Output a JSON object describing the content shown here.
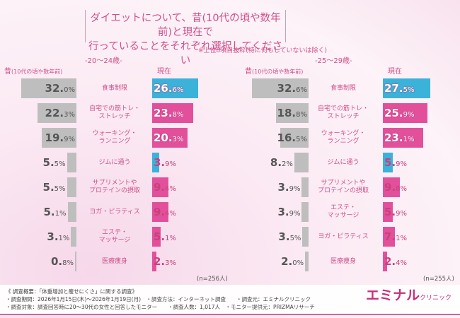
{
  "title": {
    "line1": "ダイエットについて、昔(10代の頃や数年前)と現在で",
    "line2": "行っていることをそれぞれ選択してください"
  },
  "note": "※上位8項目抜粋(特に何もしていないは除く)",
  "colors": {
    "past": "#bebebe",
    "current_pink": "#e2509c",
    "current_blue": "#3bb2d9",
    "accent": "#d0508a"
  },
  "chart_data": [
    {
      "type": "bar",
      "title": "-20～24歳-",
      "past_label": "昔",
      "past_label_sub": "(10代の頃や数年前)",
      "current_label": "現在",
      "n": "(n=256人)",
      "categories": [
        "食事制限",
        "自宅での筋トレ・\nストレッチ",
        "ウォーキング・\nランニング",
        "ジムに通う",
        "サプリメントや\nプロテインの摂取",
        "ヨガ・ピラティス",
        "エステ・\nマッサージ",
        "医療痩身"
      ],
      "series": [
        {
          "name": "昔(10代の頃や数年前)",
          "values": [
            32.0,
            22.3,
            19.9,
            5.5,
            5.5,
            5.1,
            3.1,
            0.8
          ]
        },
        {
          "name": "現在",
          "values": [
            26.6,
            23.8,
            20.3,
            3.9,
            9.4,
            9.4,
            5.1,
            2.3
          ]
        }
      ],
      "current_colors": [
        "blue",
        "pink",
        "pink",
        "blue",
        "pink",
        "pink",
        "pink",
        "pink"
      ]
    },
    {
      "type": "bar",
      "title": "-25～29歳-",
      "past_label": "昔",
      "past_label_sub": "(10代の頃や数年前)",
      "current_label": "現在",
      "n": "(n=255人)",
      "categories": [
        "食事制限",
        "自宅での筋トレ・\nストレッチ",
        "ウォーキング・\nランニング",
        "ジムに通う",
        "サプリメントや\nプロテインの摂取",
        "エステ・\nマッサージ",
        "ヨガ・ピラティス",
        "医療痩身"
      ],
      "series": [
        {
          "name": "昔(10代の頃や数年前)",
          "values": [
            32.6,
            18.8,
            16.5,
            8.2,
            3.9,
            3.9,
            3.5,
            2.0
          ]
        },
        {
          "name": "現在",
          "values": [
            27.5,
            25.9,
            23.1,
            5.9,
            9.8,
            5.9,
            7.1,
            2.4
          ]
        }
      ],
      "current_colors": [
        "blue",
        "pink",
        "pink",
        "blue",
        "pink",
        "pink",
        "pink",
        "pink"
      ]
    }
  ],
  "footer": {
    "line1": "《 調査概要：「体重増加と痩せにくさ」に関する調査》",
    "line2": "・調査期間：2026年1月15日(木)～2026年1月19日(月)　・調査方法：インターネット調査　　・調査元：エミナルクリニック",
    "line3": "・調査対象：調査回答時に20～30代の女性と回答したモニター　　・調査人数：1,017人　・モニター提供元：PRIZMAリサーチ"
  },
  "logo": {
    "main": "エミナル",
    "sub": "クリニック"
  }
}
